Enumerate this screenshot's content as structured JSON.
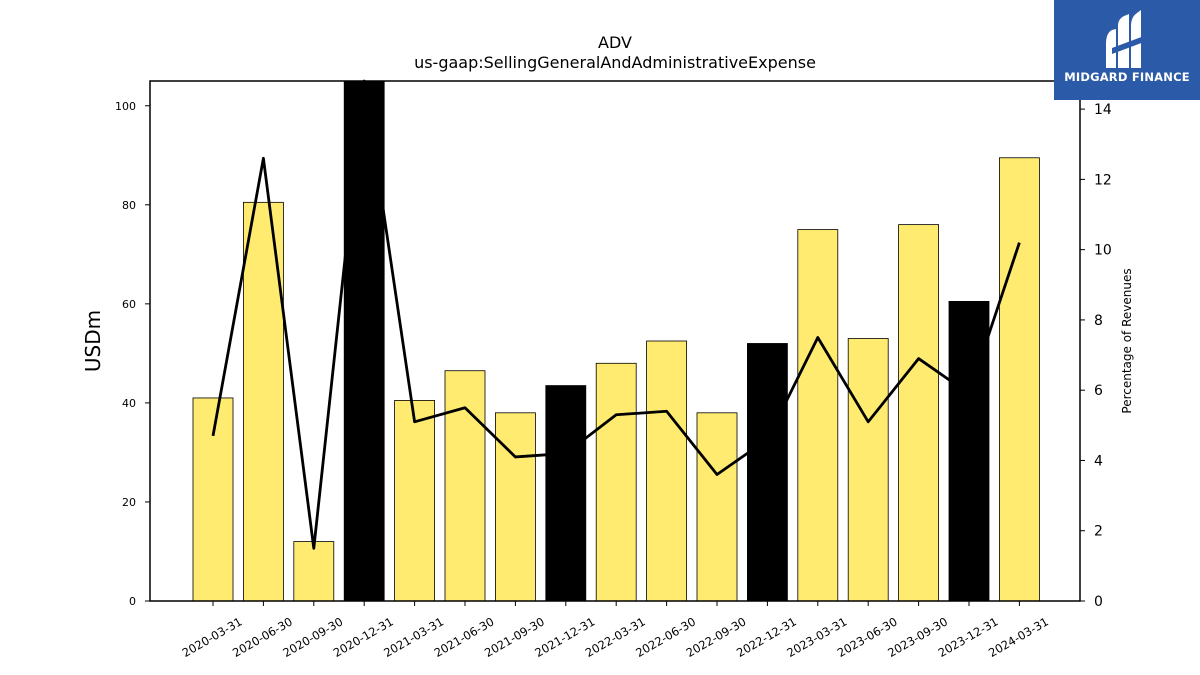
{
  "chart_data": {
    "type": "bar",
    "title": "ADV",
    "subtitle": "us-gaap:SellingGeneralAndAdministrativeExpense",
    "ylabel": "USDm",
    "y2label": "Percentage of Revenues",
    "ylim": [
      0,
      105
    ],
    "y2lim": [
      0,
      14.8
    ],
    "yticks": [
      0,
      20,
      40,
      60,
      80,
      100
    ],
    "y2ticks": [
      0,
      2,
      4,
      6,
      8,
      10,
      12,
      14
    ],
    "categories": [
      "2020-03-31",
      "2020-06-30",
      "2020-09-30",
      "2020-12-31",
      "2021-03-31",
      "2021-06-30",
      "2021-09-30",
      "2021-12-31",
      "2022-03-31",
      "2022-06-30",
      "2022-09-30",
      "2022-12-31",
      "2023-03-31",
      "2023-06-30",
      "2023-09-30",
      "2023-12-31",
      "2024-03-31"
    ],
    "values": [
      41.0,
      80.5,
      12.0,
      105.5,
      40.5,
      46.5,
      38.0,
      43.5,
      48.0,
      52.5,
      38.0,
      52.0,
      75.0,
      53.0,
      76.0,
      60.5,
      89.5
    ],
    "highlight": [
      false,
      false,
      false,
      true,
      false,
      false,
      false,
      true,
      false,
      false,
      false,
      true,
      false,
      false,
      false,
      true,
      false
    ],
    "line_values": [
      4.7,
      12.6,
      1.5,
      14.8,
      5.1,
      5.5,
      4.1,
      4.2,
      5.3,
      5.4,
      3.6,
      4.6,
      7.5,
      5.1,
      6.9,
      5.9,
      10.2
    ],
    "colors": {
      "bar": "#ffeb70",
      "highlight_bar": "#000000",
      "line": "#000000"
    },
    "grid": false
  },
  "logo": {
    "text": "MIDGARD FINANCE"
  }
}
